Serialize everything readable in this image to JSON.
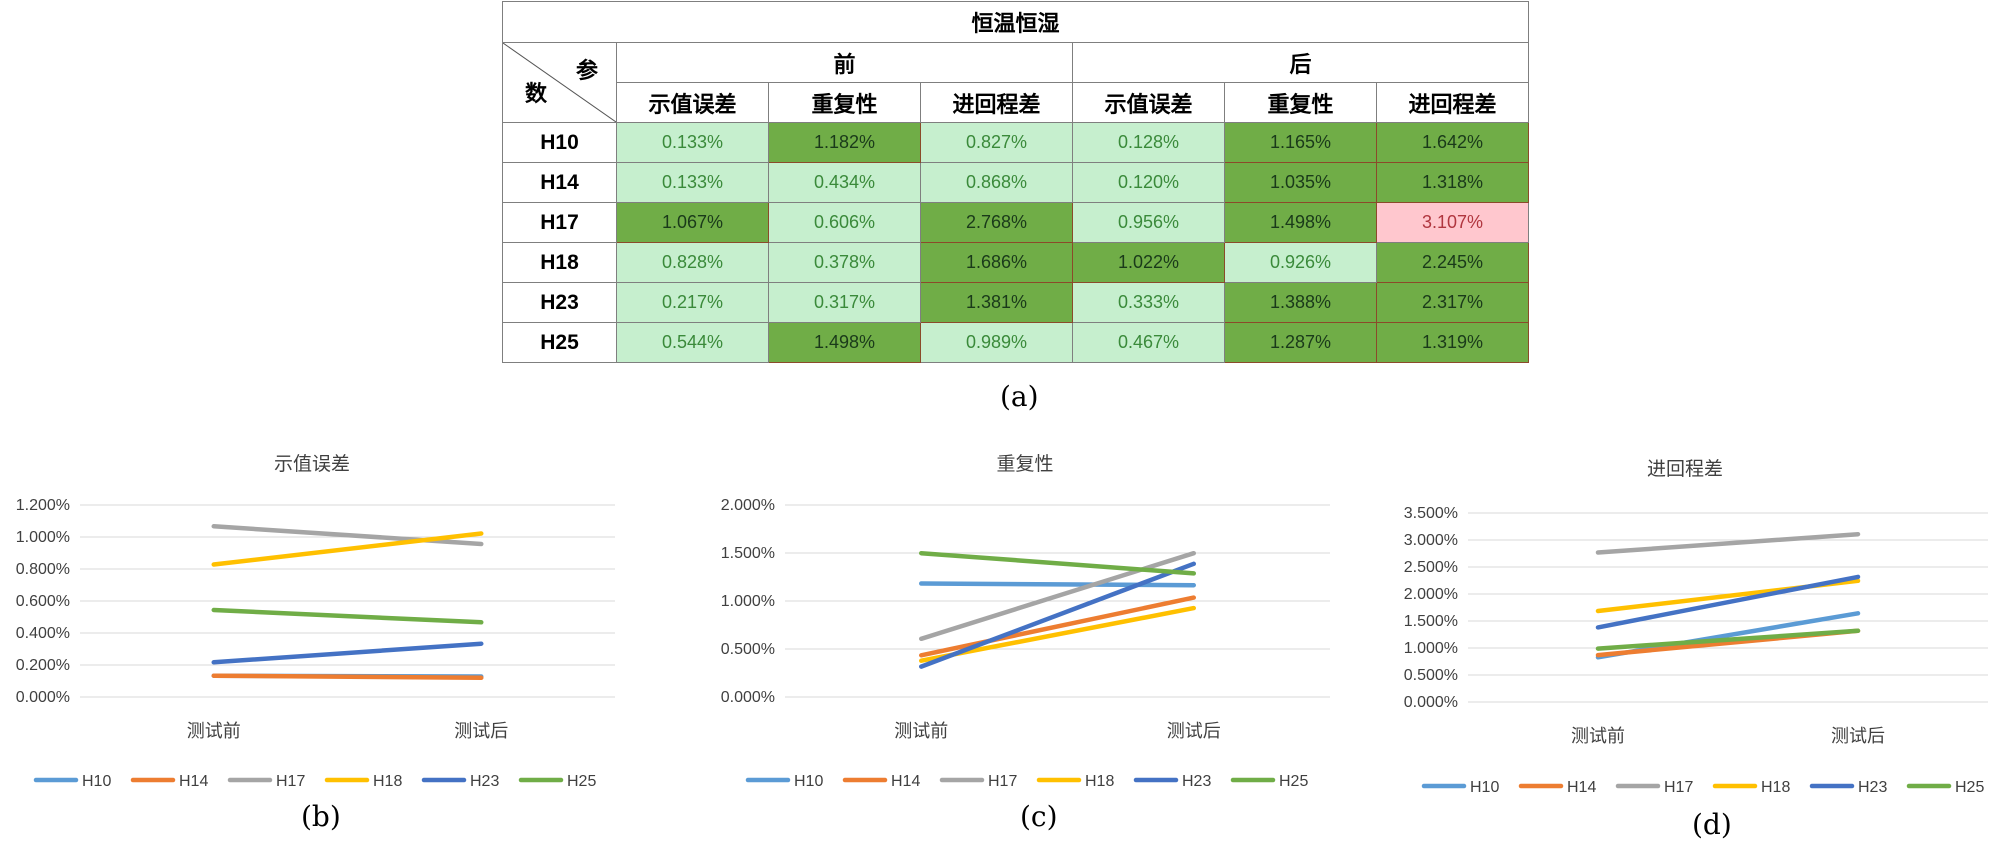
{
  "table": {
    "title": "恒温恒湿",
    "corner_top": "参",
    "corner_bottom": "数",
    "groups": [
      "前",
      "后"
    ],
    "subheaders": [
      "示值误差",
      "重复性",
      "进回程差",
      "示值误差",
      "重复性",
      "进回程差"
    ],
    "rows": [
      {
        "label": "H10",
        "cells": [
          {
            "v": "0.133%",
            "c": "light"
          },
          {
            "v": "1.182%",
            "c": "dark"
          },
          {
            "v": "0.827%",
            "c": "light"
          },
          {
            "v": "0.128%",
            "c": "light"
          },
          {
            "v": "1.165%",
            "c": "dark"
          },
          {
            "v": "1.642%",
            "c": "dark"
          }
        ]
      },
      {
        "label": "H14",
        "cells": [
          {
            "v": "0.133%",
            "c": "light"
          },
          {
            "v": "0.434%",
            "c": "light"
          },
          {
            "v": "0.868%",
            "c": "light"
          },
          {
            "v": "0.120%",
            "c": "light"
          },
          {
            "v": "1.035%",
            "c": "dark"
          },
          {
            "v": "1.318%",
            "c": "dark"
          }
        ]
      },
      {
        "label": "H17",
        "cells": [
          {
            "v": "1.067%",
            "c": "dark"
          },
          {
            "v": "0.606%",
            "c": "light"
          },
          {
            "v": "2.768%",
            "c": "dark"
          },
          {
            "v": "0.956%",
            "c": "light"
          },
          {
            "v": "1.498%",
            "c": "dark"
          },
          {
            "v": "3.107%",
            "c": "pink"
          }
        ]
      },
      {
        "label": "H18",
        "cells": [
          {
            "v": "0.828%",
            "c": "light"
          },
          {
            "v": "0.378%",
            "c": "light"
          },
          {
            "v": "1.686%",
            "c": "dark"
          },
          {
            "v": "1.022%",
            "c": "dark"
          },
          {
            "v": "0.926%",
            "c": "light"
          },
          {
            "v": "2.245%",
            "c": "dark"
          }
        ]
      },
      {
        "label": "H23",
        "cells": [
          {
            "v": "0.217%",
            "c": "light"
          },
          {
            "v": "0.317%",
            "c": "light"
          },
          {
            "v": "1.381%",
            "c": "dark"
          },
          {
            "v": "0.333%",
            "c": "light"
          },
          {
            "v": "1.388%",
            "c": "dark"
          },
          {
            "v": "2.317%",
            "c": "dark"
          }
        ]
      },
      {
        "label": "H25",
        "cells": [
          {
            "v": "0.544%",
            "c": "light"
          },
          {
            "v": "1.498%",
            "c": "dark"
          },
          {
            "v": "0.989%",
            "c": "light"
          },
          {
            "v": "0.467%",
            "c": "light"
          },
          {
            "v": "1.287%",
            "c": "dark"
          },
          {
            "v": "1.319%",
            "c": "dark"
          }
        ]
      }
    ]
  },
  "captions": {
    "a": "(a)",
    "b": "(b)",
    "c": "(c)",
    "d": "(d)"
  },
  "colors": {
    "H10": "#5b9bd5",
    "H14": "#ed7d31",
    "H17": "#a5a5a5",
    "H18": "#ffc000",
    "H23": "#4472c4",
    "H25": "#70ad47",
    "light_fill": "#c6efce",
    "dark_fill": "#70ad47",
    "pink_fill": "#ffc7ce"
  },
  "chart_data": [
    {
      "type": "line",
      "title": "示值误差",
      "categories": [
        "测试前",
        "测试后"
      ],
      "ylim": [
        0,
        1.2
      ],
      "yticks": [
        "0.000%",
        "0.200%",
        "0.400%",
        "0.600%",
        "0.800%",
        "1.000%",
        "1.200%"
      ],
      "legend": "bottom",
      "grid": true,
      "series": [
        {
          "name": "H10",
          "values": [
            0.133,
            0.128
          ]
        },
        {
          "name": "H14",
          "values": [
            0.133,
            0.12
          ]
        },
        {
          "name": "H17",
          "values": [
            1.067,
            0.956
          ]
        },
        {
          "name": "H18",
          "values": [
            0.828,
            1.022
          ]
        },
        {
          "name": "H23",
          "values": [
            0.217,
            0.333
          ]
        },
        {
          "name": "H25",
          "values": [
            0.544,
            0.467
          ]
        }
      ]
    },
    {
      "type": "line",
      "title": "重复性",
      "categories": [
        "测试前",
        "测试后"
      ],
      "ylim": [
        0,
        2.0
      ],
      "yticks": [
        "0.000%",
        "0.500%",
        "1.000%",
        "1.500%",
        "2.000%"
      ],
      "legend": "bottom",
      "grid": true,
      "series": [
        {
          "name": "H10",
          "values": [
            1.182,
            1.165
          ]
        },
        {
          "name": "H14",
          "values": [
            0.434,
            1.035
          ]
        },
        {
          "name": "H17",
          "values": [
            0.606,
            1.498
          ]
        },
        {
          "name": "H18",
          "values": [
            0.378,
            0.926
          ]
        },
        {
          "name": "H23",
          "values": [
            0.317,
            1.388
          ]
        },
        {
          "name": "H25",
          "values": [
            1.498,
            1.287
          ]
        }
      ]
    },
    {
      "type": "line",
      "title": "进回程差",
      "categories": [
        "测试前",
        "测试后"
      ],
      "ylim": [
        0,
        3.5
      ],
      "yticks": [
        "0.000%",
        "0.500%",
        "1.000%",
        "1.500%",
        "2.000%",
        "2.500%",
        "3.000%",
        "3.500%"
      ],
      "legend": "bottom",
      "grid": true,
      "series": [
        {
          "name": "H10",
          "values": [
            0.827,
            1.642
          ]
        },
        {
          "name": "H14",
          "values": [
            0.868,
            1.318
          ]
        },
        {
          "name": "H17",
          "values": [
            2.768,
            3.107
          ]
        },
        {
          "name": "H18",
          "values": [
            1.686,
            2.245
          ]
        },
        {
          "name": "H23",
          "values": [
            1.381,
            2.317
          ]
        },
        {
          "name": "H25",
          "values": [
            0.989,
            1.319
          ]
        }
      ]
    }
  ]
}
